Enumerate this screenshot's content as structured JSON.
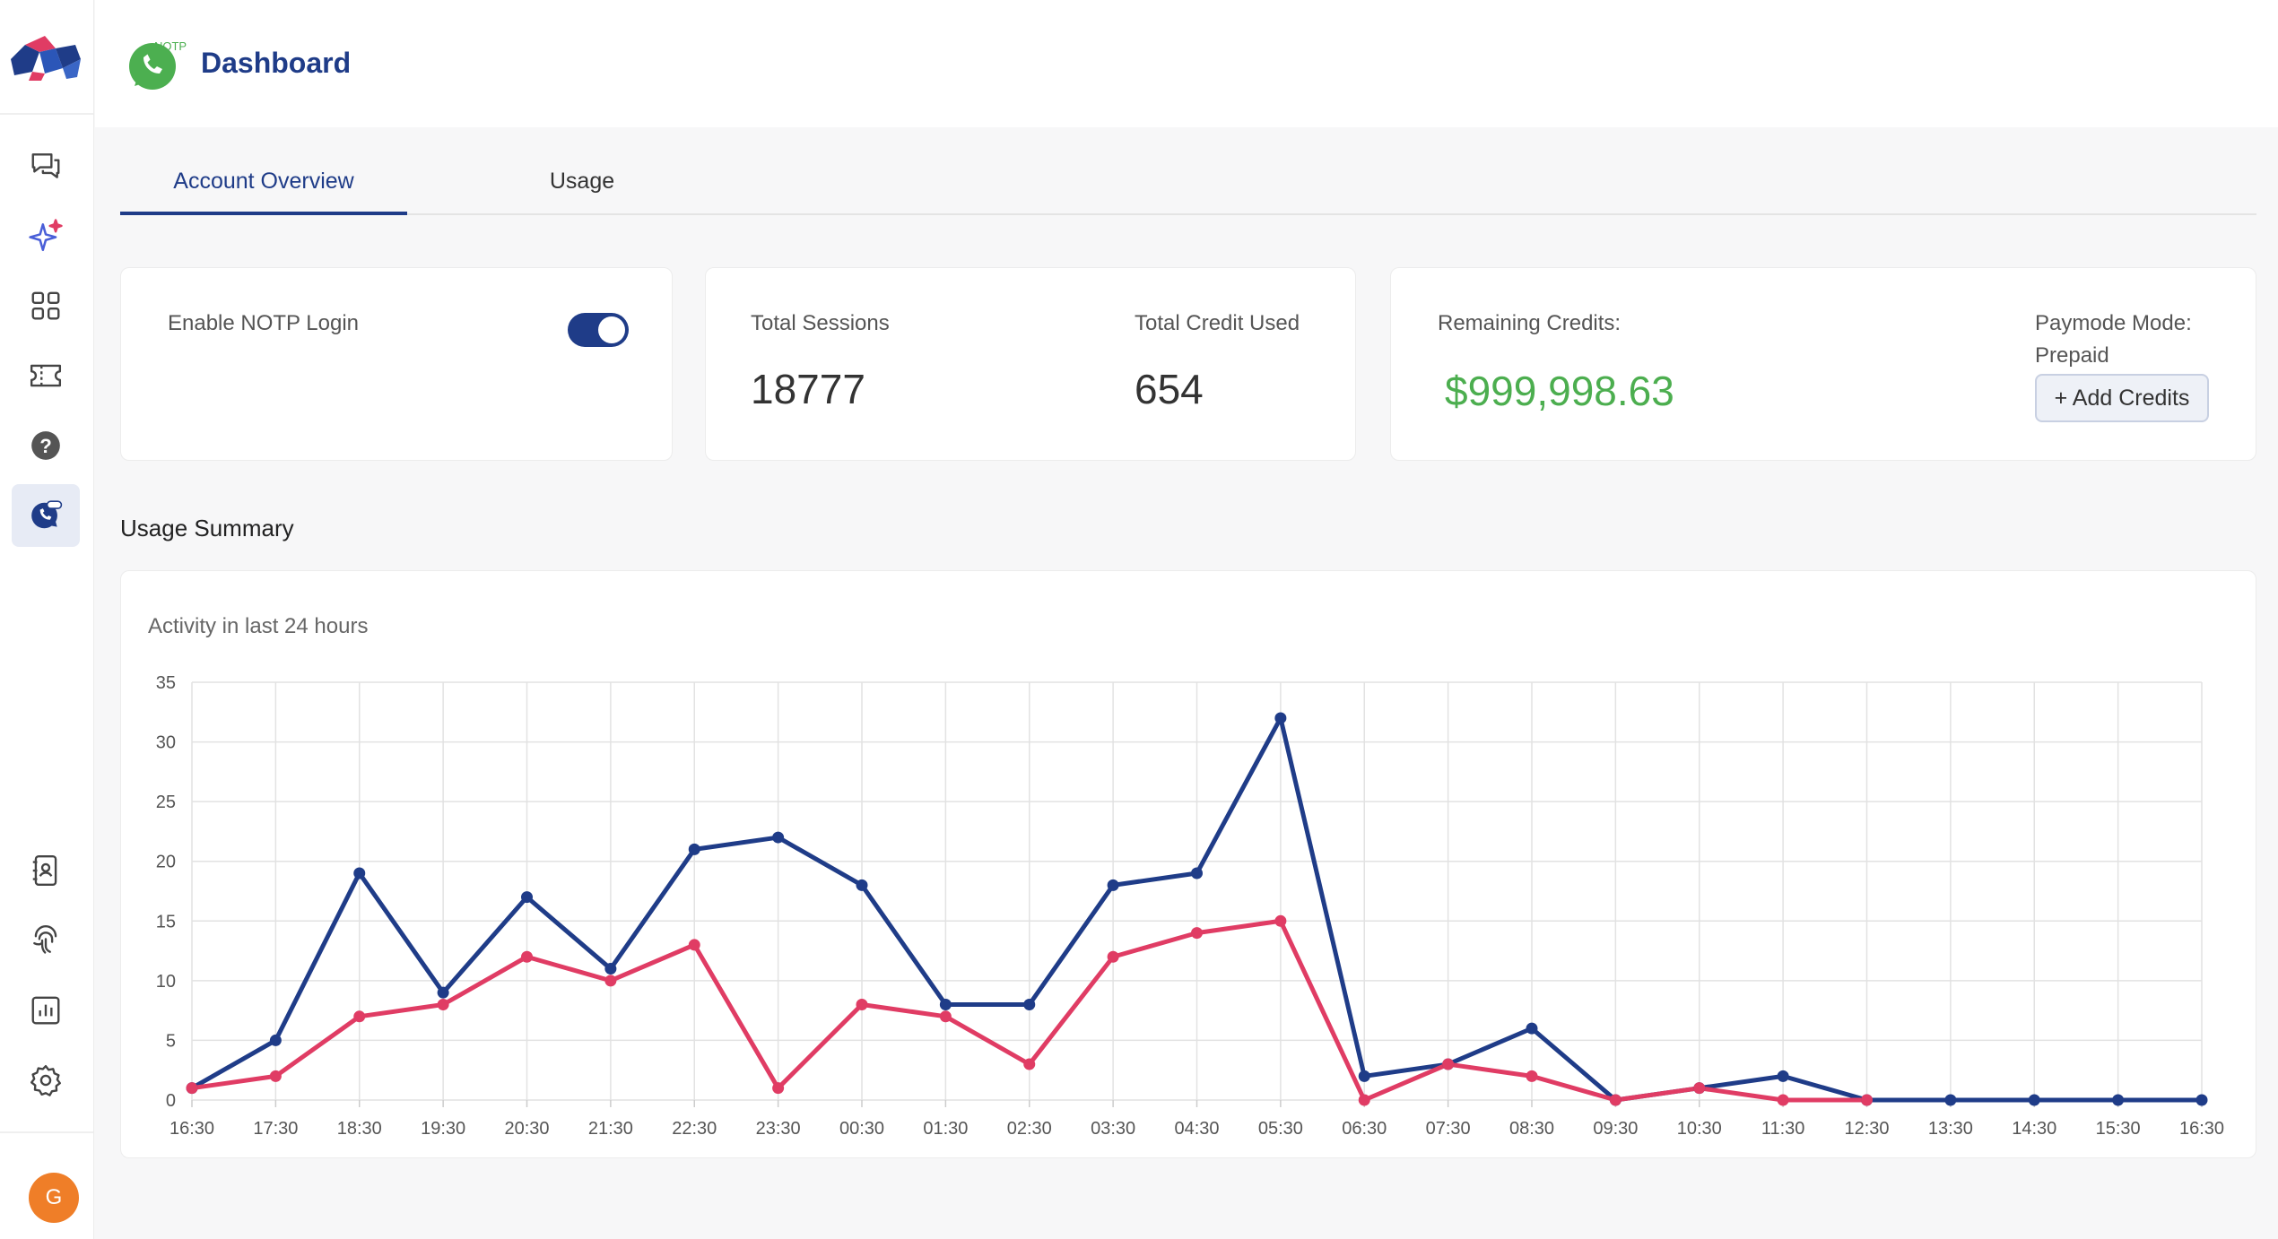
{
  "header": {
    "title": "Dashboard",
    "logo_badge": "NOTP"
  },
  "sidebar": {
    "items": [
      {
        "icon": "chat-bubbles-icon"
      },
      {
        "icon": "sparkle-icon"
      },
      {
        "icon": "apps-grid-icon"
      },
      {
        "icon": "ticket-icon"
      },
      {
        "icon": "help-icon"
      },
      {
        "icon": "notp-icon",
        "active": true
      },
      {
        "icon": "contact-book-icon"
      },
      {
        "icon": "touch-id-icon"
      },
      {
        "icon": "analytics-icon"
      },
      {
        "icon": "settings-icon"
      }
    ],
    "avatar_initial": "G"
  },
  "tabs": [
    {
      "label": "Account Overview",
      "active": true
    },
    {
      "label": "Usage",
      "active": false
    }
  ],
  "cards": {
    "login": {
      "label": "Enable NOTP Login",
      "enabled": true
    },
    "sessions": {
      "label": "Total Sessions",
      "value": "18777"
    },
    "credits_used": {
      "label": "Total Credit Used",
      "value": "654"
    },
    "remaining": {
      "label": "Remaining Credits:",
      "value": "$999,998.63"
    },
    "paymode": {
      "label": "Paymode Mode:",
      "value": "Prepaid",
      "add_button": "+ Add Credits"
    }
  },
  "usage": {
    "section_title": "Usage Summary",
    "chart_subtitle": "Activity in last 24 hours"
  },
  "colors": {
    "accent": "#1f3c88",
    "series_secondary": "#e03c64",
    "credit_green": "#4cae4f"
  },
  "chart_data": {
    "type": "line",
    "title": "Activity in last 24 hours",
    "categories": [
      "16:30",
      "17:30",
      "18:30",
      "19:30",
      "20:30",
      "21:30",
      "22:30",
      "23:30",
      "00:30",
      "01:30",
      "02:30",
      "03:30",
      "04:30",
      "05:30",
      "06:30",
      "07:30",
      "08:30",
      "09:30",
      "10:30",
      "11:30",
      "12:30",
      "13:30",
      "14:30",
      "15:30",
      "16:30"
    ],
    "ylim": [
      0,
      35
    ],
    "yticks": [
      0,
      5,
      10,
      15,
      20,
      25,
      30,
      35
    ],
    "grid": true,
    "series": [
      {
        "color": "#1f3c88",
        "values": [
          1,
          5,
          19,
          9,
          17,
          11,
          21,
          22,
          18,
          8,
          8,
          18,
          19,
          32,
          2,
          3,
          6,
          0,
          1,
          2,
          0,
          0,
          0,
          0,
          0
        ]
      },
      {
        "color": "#e03c64",
        "values": [
          1,
          2,
          7,
          8,
          12,
          10,
          13,
          1,
          8,
          7,
          3,
          12,
          14,
          15,
          0,
          3,
          2,
          0,
          1,
          0,
          0,
          null,
          null,
          null,
          null
        ]
      }
    ]
  }
}
